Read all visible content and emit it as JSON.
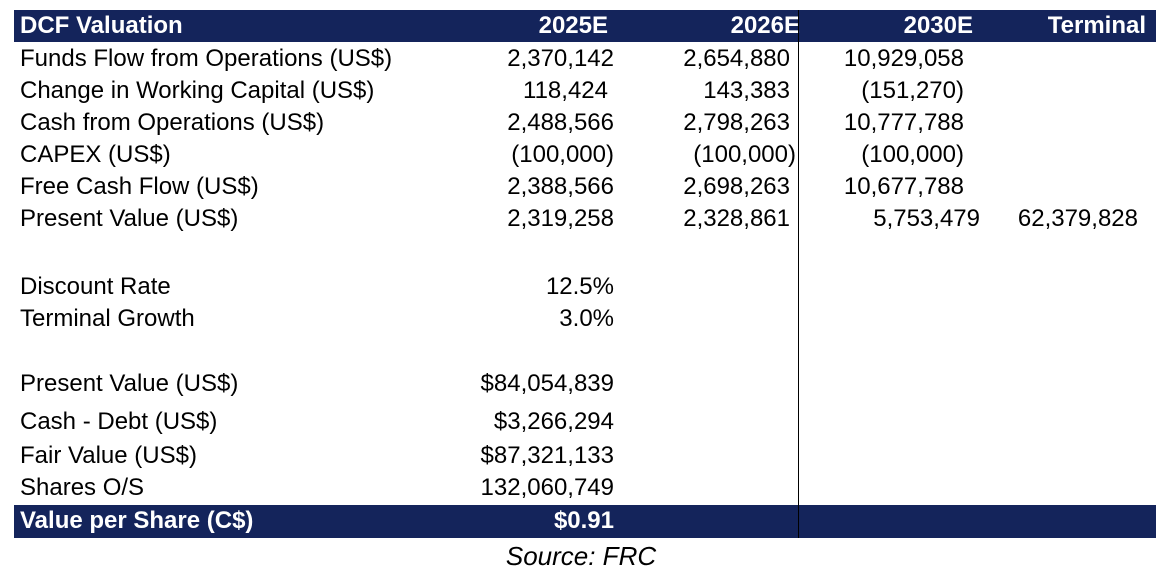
{
  "table": {
    "header": {
      "label": "DCF Valuation",
      "col_2025": "2025E",
      "col_2026": "2026E",
      "col_2030": "2030E",
      "col_terminal": "Terminal"
    },
    "rows": [
      {
        "label": "Funds Flow from Operations (US$)",
        "v2025": "2,370,142",
        "v2026": "2,654,880",
        "v2030": "10,929,058",
        "terminal": ""
      },
      {
        "label": "Change in Working Capital (US$)",
        "v2025": "118,424",
        "v2026": "143,383",
        "v2030": "(151,270)",
        "terminal": ""
      },
      {
        "label": "Cash from Operations (US$)",
        "v2025": "2,488,566",
        "v2026": "2,798,263",
        "v2030": "10,777,788",
        "terminal": ""
      },
      {
        "label": "CAPEX (US$)",
        "v2025": "(100,000)",
        "v2026": "(100,000)",
        "v2030": "(100,000)",
        "terminal": ""
      },
      {
        "label": "Free Cash Flow (US$)",
        "v2025": "2,388,566",
        "v2026": "2,698,263",
        "v2030": "10,677,788",
        "terminal": ""
      },
      {
        "label": "Present Value (US$)",
        "v2025": "2,319,258",
        "v2026": "2,328,861",
        "v2030": "5,753,479",
        "terminal": "62,379,828"
      }
    ],
    "assumptions": [
      {
        "label": "Discount Rate",
        "value": "12.5%"
      },
      {
        "label": "Terminal Growth",
        "value": "3.0%"
      }
    ],
    "summary": [
      {
        "label": "Present Value (US$)",
        "value": "$84,054,839"
      },
      {
        "label": "Cash - Debt  (US$)",
        "value": "$3,266,294"
      },
      {
        "label": "Fair Value (US$)",
        "value": "$87,321,133"
      },
      {
        "label": "Shares O/S",
        "value": "132,060,749"
      }
    ],
    "footer": {
      "label": "Value per Share (C$)",
      "value": "$0.91"
    },
    "colors": {
      "header_bg": "#14245b",
      "header_text": "#ffffff"
    }
  },
  "source": "Source: FRC"
}
